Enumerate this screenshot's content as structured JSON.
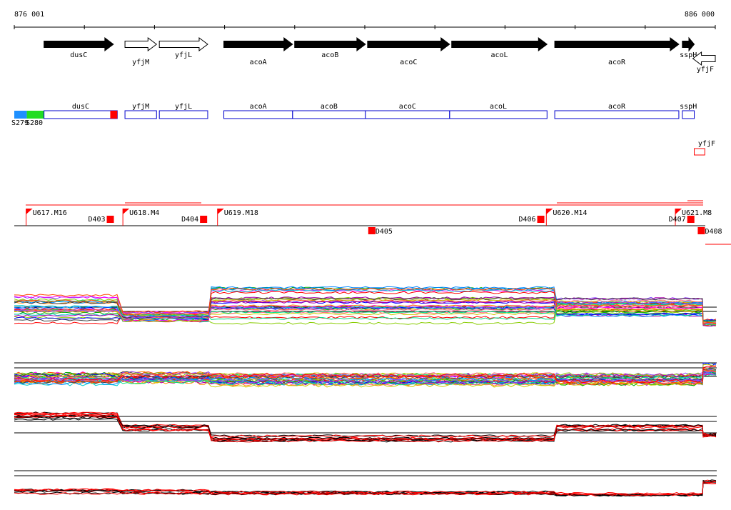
{
  "ruler": {
    "start_label": "876 001",
    "end_label": "886 000",
    "start": 876001,
    "end": 886000
  },
  "colors": {
    "gene_fill": "#000000",
    "gene_outline": "#000000",
    "annotation_box": "#0000cc",
    "marker_red": "#ff0000",
    "segment_blue": "#1e90ff",
    "segment_green": "#22dd22"
  },
  "gene_arrows": [
    {
      "name": "dusC",
      "start": 876425,
      "end": 877415,
      "strand": "+",
      "filled": true
    },
    {
      "name": "yfjM",
      "start": 877580,
      "end": 878030,
      "strand": "+",
      "filled": false
    },
    {
      "name": "yfjL",
      "start": 878070,
      "end": 878760,
      "strand": "+",
      "filled": false
    },
    {
      "name": "acoA",
      "start": 878990,
      "end": 879970,
      "strand": "+",
      "filled": true
    },
    {
      "name": "acoB",
      "start": 880000,
      "end": 881010,
      "strand": "+",
      "filled": true
    },
    {
      "name": "acoC",
      "start": 881040,
      "end": 882210,
      "strand": "+",
      "filled": true
    },
    {
      "name": "acoL",
      "start": 882240,
      "end": 883600,
      "strand": "+",
      "filled": true
    },
    {
      "name": "acoR",
      "start": 883710,
      "end": 885480,
      "strand": "+",
      "filled": true
    },
    {
      "name": "sspH",
      "start": 885530,
      "end": 885700,
      "strand": "+",
      "filled": true
    },
    {
      "name": "yfjF",
      "start": 885680,
      "end": 886000,
      "strand": "-",
      "filled": false
    }
  ],
  "annotation_boxes": [
    {
      "name": "dusC",
      "start": 876425,
      "end": 877470,
      "row": 0
    },
    {
      "name": "yfjM",
      "start": 877580,
      "end": 878030,
      "row": 0
    },
    {
      "name": "yfjL",
      "start": 878070,
      "end": 878760,
      "row": 0
    },
    {
      "name": "acoA",
      "start": 878990,
      "end": 879970,
      "row": 0
    },
    {
      "name": "acoB",
      "start": 879970,
      "end": 881010,
      "row": 0
    },
    {
      "name": "acoC",
      "start": 881010,
      "end": 882210,
      "row": 0
    },
    {
      "name": "acoL",
      "start": 882210,
      "end": 883600,
      "row": 0
    },
    {
      "name": "acoR",
      "start": 883710,
      "end": 885480,
      "row": 0
    },
    {
      "name": "sspH",
      "start": 885530,
      "end": 885700,
      "row": 0
    },
    {
      "name": "yfjF",
      "start": 885700,
      "end": 885850,
      "row": 1
    }
  ],
  "segments": [
    {
      "name": "S279",
      "start": 876001,
      "end": 876180
    },
    {
      "name": "S280",
      "start": 876180,
      "end": 876425
    }
  ],
  "red_marker_dusC": {
    "start": 877370,
    "end": 877470
  },
  "transcription_units": [
    {
      "name": "U617.M16",
      "start": 876170,
      "end": 877440
    },
    {
      "name": "U618.M4",
      "start": 877550,
      "end": 878730
    },
    {
      "name": "U619.M18",
      "start": 878900,
      "end": 883540
    },
    {
      "name": "U620.M14",
      "start": 883590,
      "end": 885560
    },
    {
      "name": "U621.M8",
      "start": 885430,
      "end": 886000
    }
  ],
  "terminators": [
    {
      "name": "D403",
      "pos": 877320,
      "below": false
    },
    {
      "name": "D404",
      "pos": 878650,
      "below": false
    },
    {
      "name": "D405",
      "pos": 881050,
      "below": true
    },
    {
      "name": "D406",
      "pos": 883460,
      "below": false
    },
    {
      "name": "D407",
      "pos": 885600,
      "below": false
    },
    {
      "name": "D408",
      "pos": 885750,
      "below": true
    }
  ]
}
